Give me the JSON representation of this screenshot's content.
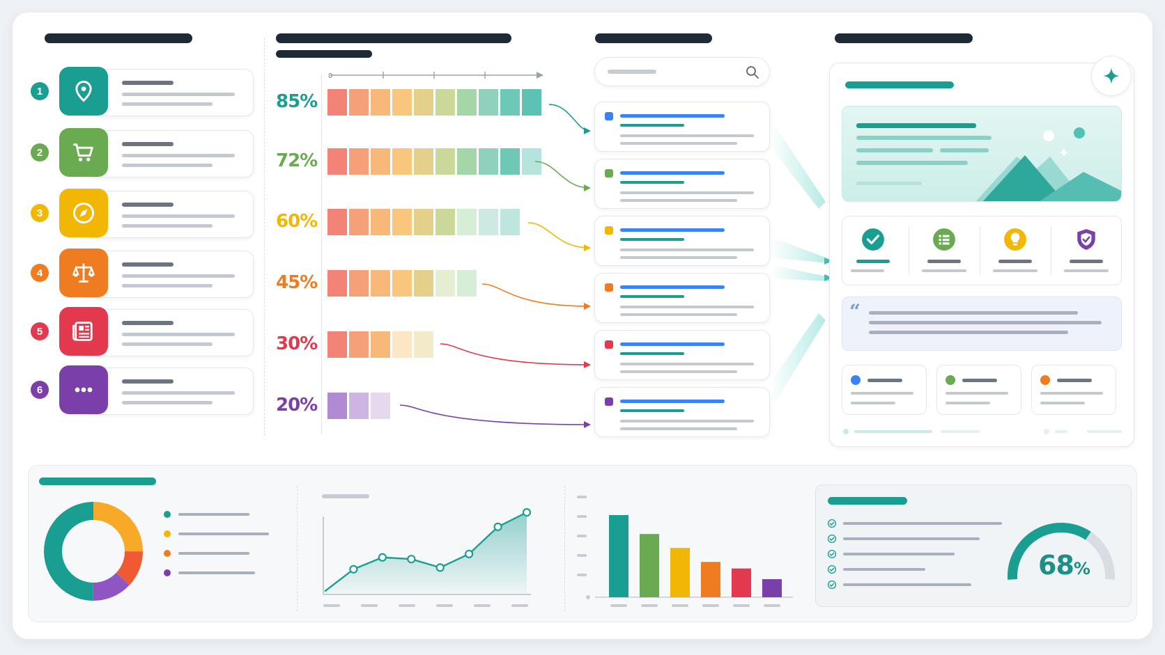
{
  "sources": {
    "items": [
      {
        "number": "1",
        "icon": "location-pin-icon",
        "color": "#1b9e92"
      },
      {
        "number": "2",
        "icon": "shopping-cart-icon",
        "color": "#6aab52"
      },
      {
        "number": "3",
        "icon": "compass-icon",
        "color": "#f2b705"
      },
      {
        "number": "4",
        "icon": "scales-icon",
        "color": "#f07c22"
      },
      {
        "number": "5",
        "icon": "newspaper-icon",
        "color": "#e2394f"
      },
      {
        "number": "6",
        "icon": "more-dots-icon",
        "color": "#7a3fa8"
      }
    ]
  },
  "scores": {
    "rows": [
      {
        "label": "85%",
        "value": 85,
        "color": "#1b9e92",
        "filled": 10,
        "total": 10
      },
      {
        "label": "72%",
        "value": 72,
        "color": "#6aab52",
        "filled": 9,
        "total": 10
      },
      {
        "label": "60%",
        "value": 60,
        "color": "#f2b705",
        "filled": 9,
        "total": 9
      },
      {
        "label": "45%",
        "value": 45,
        "color": "#f07c22",
        "filled": 7,
        "total": 7
      },
      {
        "label": "30%",
        "value": 30,
        "color": "#e2394f",
        "filled": 5,
        "total": 5
      },
      {
        "label": "20%",
        "value": 20,
        "color": "#7a3fa8",
        "filled": 3,
        "total": 3
      }
    ],
    "axis_start": "0"
  },
  "results": {
    "markers": [
      "#3b82f6",
      "#6aab52",
      "#f2b705",
      "#f07c22",
      "#e2394f",
      "#7a3fa8"
    ]
  },
  "summary": {
    "stats": [
      {
        "icon": "check-circle-icon",
        "color": "#1b9e92"
      },
      {
        "icon": "list-icon",
        "color": "#6aab52"
      },
      {
        "icon": "lightbulb-icon",
        "color": "#f2b705"
      },
      {
        "icon": "shield-check-icon",
        "color": "#7a3fa8"
      }
    ],
    "chips": [
      "#3b82f6",
      "#6aab52",
      "#f07c22"
    ],
    "quote_mark": "“"
  },
  "bottom": {
    "donut": [
      {
        "share": 0.25,
        "color": "#f7a928"
      },
      {
        "share": 0.12,
        "color": "#ef5a33"
      },
      {
        "share": 0.13,
        "color": "#8e56c2"
      },
      {
        "share": 0.5,
        "color": "#1b9e92"
      }
    ],
    "legend_colors": [
      "#1b9e92",
      "#f2b705",
      "#f07c22",
      "#7a3fa8"
    ],
    "line": {
      "values": [
        2,
        28,
        42,
        40,
        30,
        46,
        78,
        95
      ]
    },
    "bars": [
      {
        "value": 100,
        "color": "#1b9e92"
      },
      {
        "value": 77,
        "color": "#6aab52"
      },
      {
        "value": 60,
        "color": "#f2b705"
      },
      {
        "value": 43,
        "color": "#f07c22"
      },
      {
        "value": 35,
        "color": "#e2394f"
      },
      {
        "value": 22,
        "color": "#7a3fa8"
      }
    ],
    "gauge": {
      "label": "68",
      "unit": "%",
      "value": 68
    }
  }
}
